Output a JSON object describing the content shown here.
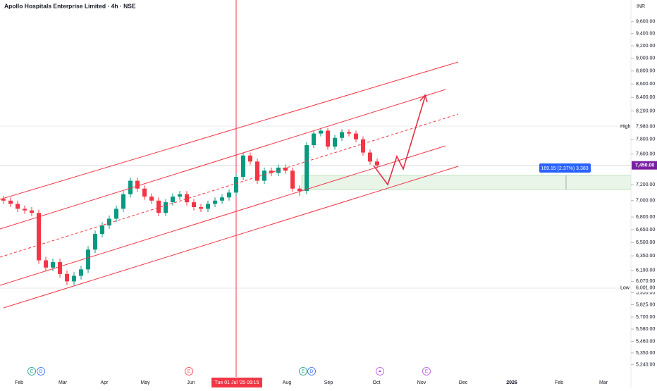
{
  "chart_data": {
    "type": "candlestick",
    "title": "Apollo Hospitals Enterprise Limited · 4h · NSE",
    "currency": "INR",
    "log_scale": true,
    "up_color": "#089981",
    "down_color": "#f23645",
    "ylim": [
      5160,
      9975
    ],
    "yticks": [
      {
        "value": 9600,
        "label": "9,600.00"
      },
      {
        "value": 9400,
        "label": "9,400.00"
      },
      {
        "value": 9200,
        "label": "9,200.00"
      },
      {
        "value": 9000,
        "label": "9,000.00"
      },
      {
        "value": 8800,
        "label": "8,800.00"
      },
      {
        "value": 8600,
        "label": "8,600.00"
      },
      {
        "value": 8400,
        "label": "8,400.00"
      },
      {
        "value": 8200,
        "label": "8,200.00"
      },
      {
        "value": 7800,
        "label": "7,800.00"
      },
      {
        "value": 7600,
        "label": "7,600.00"
      },
      {
        "value": 7200,
        "label": "7,200.00"
      },
      {
        "value": 7000,
        "label": "7,000.00"
      },
      {
        "value": 6800,
        "label": "6,800.00"
      },
      {
        "value": 6650,
        "label": "6,650.00"
      },
      {
        "value": 6500,
        "label": "6,500.00"
      },
      {
        "value": 6350,
        "label": "6,350.00"
      },
      {
        "value": 6190,
        "label": "6,190.00"
      },
      {
        "value": 6070,
        "label": "6,070.00"
      },
      {
        "value": 5950,
        "label": "5,950.00"
      },
      {
        "value": 5825,
        "label": "5,825.00"
      },
      {
        "value": 5700,
        "label": "5,700.00"
      },
      {
        "value": 5580,
        "label": "5,580.00"
      },
      {
        "value": 5460,
        "label": "5,460.00"
      },
      {
        "value": 5350,
        "label": "5,350.00"
      },
      {
        "value": 5240,
        "label": "5,240.00"
      }
    ],
    "x_labels": [
      "Feb",
      "Mar",
      "Apr",
      "May",
      "Jun",
      "Aug",
      "Sep",
      "Oct",
      "Nov",
      "Dec",
      "2026",
      "Feb",
      "Mar"
    ],
    "crosshair_label": "Tue 01 Jul '25   09:15",
    "open": [
      7020,
      7000,
      6960,
      6900,
      6880,
      6850,
      6300,
      6220,
      6280,
      6150,
      6070,
      6130,
      6200,
      6420,
      6600,
      6700,
      6780,
      6900,
      7080,
      7250,
      7150,
      7050,
      7000,
      6850,
      6980,
      7050,
      7080,
      6980,
      6920,
      6900,
      6960,
      7000,
      7040,
      7100,
      7300,
      7580,
      7500,
      7250,
      7380,
      7350,
      7420,
      7380,
      7150,
      7120,
      7720,
      7880,
      7920,
      7700,
      7820,
      7900,
      7880,
      7800,
      7620,
      7500
    ],
    "high": [
      7060,
      7040,
      7000,
      6940,
      6920,
      6890,
      6340,
      6320,
      6320,
      6190,
      6170,
      6240,
      6460,
      6640,
      6740,
      6820,
      6940,
      7120,
      7290,
      7290,
      7190,
      7090,
      7040,
      7020,
      7090,
      7120,
      7120,
      7020,
      6960,
      7000,
      7040,
      7080,
      7140,
      7340,
      7620,
      7620,
      7540,
      7420,
      7420,
      7460,
      7460,
      7420,
      7190,
      7760,
      7920,
      7960,
      7960,
      7860,
      7940,
      7940,
      7920,
      7840,
      7660,
      7540
    ],
    "low": [
      6960,
      6920,
      6860,
      6840,
      6810,
      6260,
      6180,
      6180,
      6110,
      6030,
      6030,
      6090,
      6160,
      6380,
      6560,
      6660,
      6740,
      6860,
      7040,
      7110,
      7010,
      6960,
      6810,
      6810,
      6940,
      7010,
      6940,
      6880,
      6860,
      6860,
      6920,
      6960,
      7000,
      7060,
      7260,
      7460,
      7210,
      7210,
      7310,
      7310,
      7340,
      7110,
      7060,
      7080,
      7680,
      7840,
      7660,
      7660,
      7780,
      7840,
      7760,
      7580,
      7460,
      7410
    ],
    "close": [
      7000,
      6960,
      6900,
      6880,
      6850,
      6300,
      6220,
      6280,
      6150,
      6070,
      6130,
      6200,
      6420,
      6600,
      6700,
      6780,
      6900,
      7080,
      7250,
      7150,
      7050,
      7000,
      6850,
      6980,
      7050,
      7080,
      6980,
      6920,
      6900,
      6960,
      7000,
      7040,
      7100,
      7300,
      7580,
      7500,
      7250,
      7380,
      7350,
      7420,
      7380,
      7150,
      7120,
      7720,
      7880,
      7920,
      7700,
      7820,
      7900,
      7880,
      7800,
      7620,
      7500,
      7450
    ],
    "price_markers": [
      {
        "label": "High",
        "value": 7980,
        "value_label": "7,980.00"
      },
      {
        "label": "Low",
        "value": 6001,
        "value_label": "6,001.00"
      }
    ],
    "last_price": {
      "value": 7450,
      "label": "7,450.00"
    },
    "measurement": "169.15 (2.37%) 3,383",
    "events": [
      "E",
      "D",
      "E",
      "E",
      "D",
      "E"
    ]
  }
}
